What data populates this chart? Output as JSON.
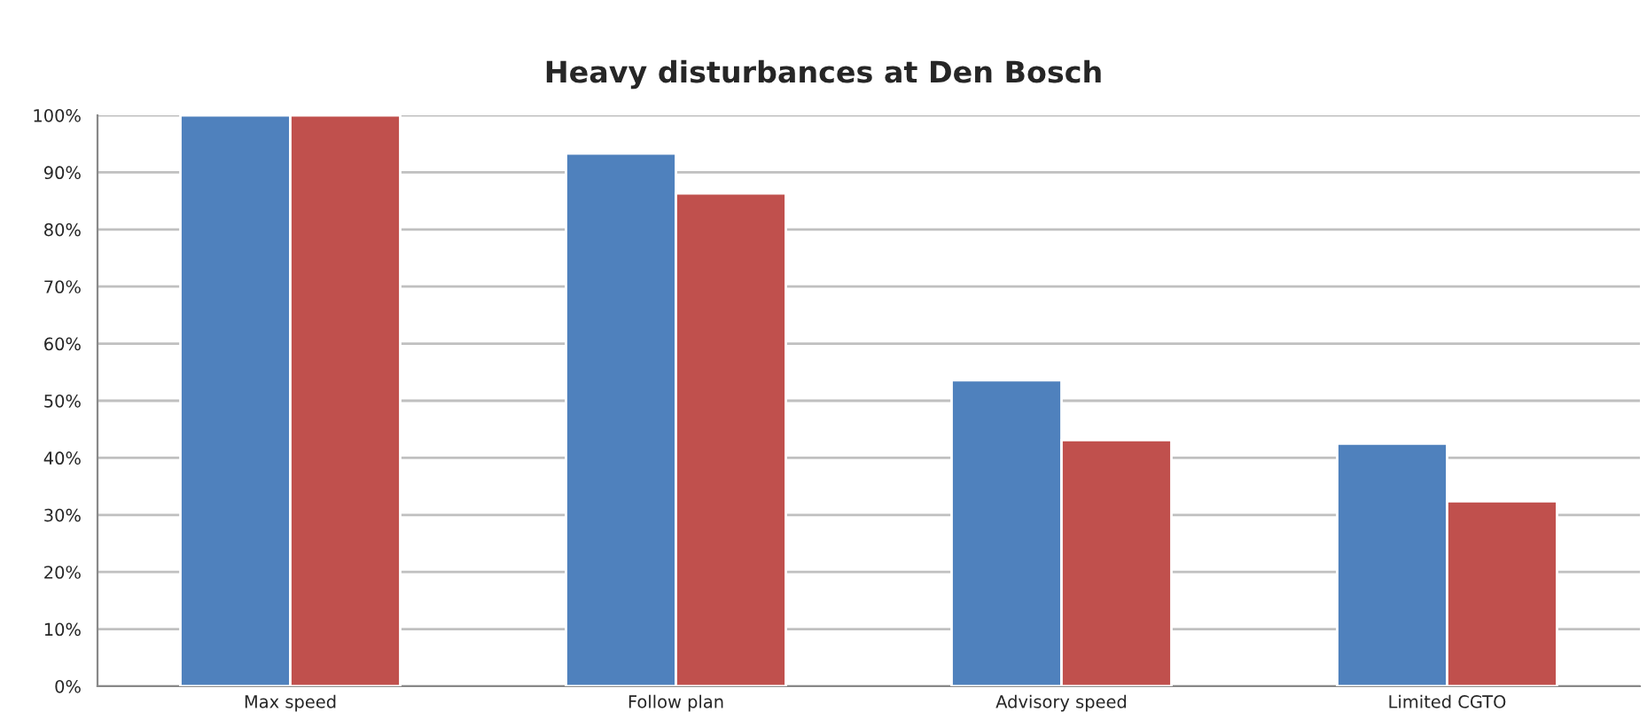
{
  "chart_data": {
    "type": "bar",
    "title": "Heavy disturbances at Den Bosch",
    "categories": [
      "Max speed",
      "Follow plan",
      "Advisory speed",
      "Limited CGTO"
    ],
    "series": [
      {
        "color": "#4f81bd",
        "values": [
          100,
          93.3,
          53.6,
          42.5
        ]
      },
      {
        "color": "#c0504d",
        "values": [
          100,
          86.3,
          43.1,
          32.4
        ]
      }
    ],
    "ylim": [
      0,
      100
    ],
    "yticks": [
      {
        "value": 0,
        "label": "0%"
      },
      {
        "value": 10,
        "label": "10%"
      },
      {
        "value": 20,
        "label": "20%"
      },
      {
        "value": 30,
        "label": "30%"
      },
      {
        "value": 40,
        "label": "40%"
      },
      {
        "value": 50,
        "label": "50%"
      },
      {
        "value": 60,
        "label": "60%"
      },
      {
        "value": 70,
        "label": "70%"
      },
      {
        "value": 80,
        "label": "80%"
      },
      {
        "value": 90,
        "label": "90%"
      },
      {
        "value": 100,
        "label": "100%"
      }
    ],
    "grid": "y"
  }
}
